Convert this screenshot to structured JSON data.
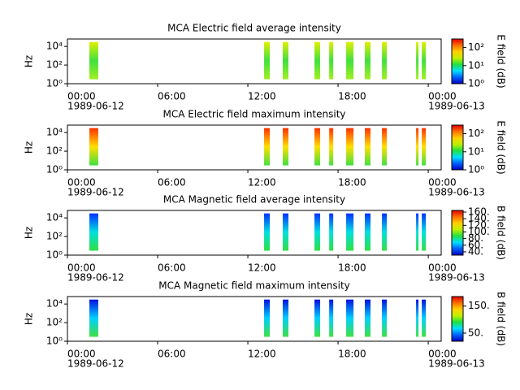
{
  "chart_data": [
    {
      "type": "spectrogram",
      "title": "MCA  Electric field average intensity",
      "ylabel": "Hz",
      "log_y": true,
      "ylim": [
        1,
        63000
      ],
      "yticks": [
        {
          "value": 1,
          "label": "10⁰"
        },
        {
          "value": 100,
          "label": "10²"
        },
        {
          "value": 10000,
          "label": "10⁴"
        }
      ],
      "xlim": [
        0,
        24.86
      ],
      "xticks": [
        {
          "value": 0,
          "label": "00:00",
          "date": "1989-06-12"
        },
        {
          "value": 6,
          "label": "06:00"
        },
        {
          "value": 12,
          "label": "12:00"
        },
        {
          "value": 18,
          "label": "18:00"
        },
        {
          "value": 24,
          "label": "00:00",
          "date": "1989-06-13"
        }
      ],
      "colorbar_label": "E field (dB)",
      "colorbar_log": true,
      "clim": [
        1,
        300
      ],
      "cticks": [
        {
          "value": 1,
          "label": "10⁰"
        },
        {
          "value": 10,
          "label": "10¹"
        },
        {
          "value": 100,
          "label": "10²"
        }
      ],
      "colormap": [
        "#0000c0",
        "#0060ff",
        "#00e0ff",
        "#20e040",
        "#c0f000",
        "#ffd000",
        "#ff7000",
        "#e00000"
      ],
      "segment_colors": [
        "#e0f000",
        "#40e040",
        "#a0f020"
      ],
      "segments": [
        {
          "start": 1.46,
          "end": 2.05,
          "fmin": 3,
          "fmax": 30000
        },
        {
          "start": 13.08,
          "end": 13.46,
          "fmin": 3,
          "fmax": 30000
        },
        {
          "start": 14.32,
          "end": 14.7,
          "fmin": 3,
          "fmax": 30000
        },
        {
          "start": 16.43,
          "end": 16.81,
          "fmin": 3,
          "fmax": 30000
        },
        {
          "start": 17.41,
          "end": 17.68,
          "fmin": 3,
          "fmax": 30000
        },
        {
          "start": 18.54,
          "end": 19.03,
          "fmin": 3,
          "fmax": 30000
        },
        {
          "start": 19.78,
          "end": 20.16,
          "fmin": 3,
          "fmax": 30000
        },
        {
          "start": 20.92,
          "end": 21.24,
          "fmin": 3,
          "fmax": 30000
        },
        {
          "start": 23.19,
          "end": 23.35,
          "fmin": 3,
          "fmax": 30000
        },
        {
          "start": 23.57,
          "end": 23.84,
          "fmin": 3,
          "fmax": 30000
        }
      ]
    },
    {
      "type": "spectrogram",
      "title": "MCA  Electric field maximum intensity",
      "ylabel": "Hz",
      "log_y": true,
      "ylim": [
        1,
        63000
      ],
      "yticks": [
        {
          "value": 1,
          "label": "10⁰"
        },
        {
          "value": 100,
          "label": "10²"
        },
        {
          "value": 10000,
          "label": "10⁴"
        }
      ],
      "xlim": [
        0,
        24.86
      ],
      "xticks": [
        {
          "value": 0,
          "label": "00:00",
          "date": "1989-06-12"
        },
        {
          "value": 6,
          "label": "06:00"
        },
        {
          "value": 12,
          "label": "12:00"
        },
        {
          "value": 18,
          "label": "18:00"
        },
        {
          "value": 24,
          "label": "00:00",
          "date": "1989-06-13"
        }
      ],
      "colorbar_label": "E field (dB)",
      "colorbar_log": true,
      "clim": [
        1,
        300
      ],
      "cticks": [
        {
          "value": 1,
          "label": "10⁰"
        },
        {
          "value": 10,
          "label": "10¹"
        },
        {
          "value": 100,
          "label": "10²"
        }
      ],
      "colormap": [
        "#0000c0",
        "#0060ff",
        "#00e0ff",
        "#20e040",
        "#c0f000",
        "#ffd000",
        "#ff7000",
        "#e00000"
      ],
      "segment_colors": [
        "#ff3000",
        "#ffe000",
        "#40e040"
      ],
      "segments": [
        {
          "start": 1.46,
          "end": 2.05,
          "fmin": 3,
          "fmax": 30000
        },
        {
          "start": 13.08,
          "end": 13.46,
          "fmin": 3,
          "fmax": 30000
        },
        {
          "start": 14.32,
          "end": 14.7,
          "fmin": 3,
          "fmax": 30000
        },
        {
          "start": 16.43,
          "end": 16.81,
          "fmin": 3,
          "fmax": 30000
        },
        {
          "start": 17.41,
          "end": 17.68,
          "fmin": 3,
          "fmax": 30000
        },
        {
          "start": 18.54,
          "end": 19.03,
          "fmin": 3,
          "fmax": 30000
        },
        {
          "start": 19.78,
          "end": 20.16,
          "fmin": 3,
          "fmax": 30000
        },
        {
          "start": 20.92,
          "end": 21.24,
          "fmin": 3,
          "fmax": 30000
        },
        {
          "start": 23.19,
          "end": 23.35,
          "fmin": 3,
          "fmax": 30000
        },
        {
          "start": 23.57,
          "end": 23.84,
          "fmin": 3,
          "fmax": 30000
        }
      ]
    },
    {
      "type": "spectrogram",
      "title": "MCA  Magnetic field average intensity",
      "ylabel": "Hz",
      "log_y": true,
      "ylim": [
        1,
        63000
      ],
      "yticks": [
        {
          "value": 1,
          "label": "10⁰"
        },
        {
          "value": 100,
          "label": "10²"
        },
        {
          "value": 10000,
          "label": "10⁴"
        }
      ],
      "xlim": [
        0,
        24.86
      ],
      "xticks": [
        {
          "value": 0,
          "label": "00:00",
          "date": "1989-06-12"
        },
        {
          "value": 6,
          "label": "06:00"
        },
        {
          "value": 12,
          "label": "12:00"
        },
        {
          "value": 18,
          "label": "18:00"
        },
        {
          "value": 24,
          "label": "00:00",
          "date": "1989-06-13"
        }
      ],
      "colorbar_label": "B field (dB)",
      "colorbar_log": false,
      "clim": [
        30,
        165
      ],
      "cticks": [
        {
          "value": 40,
          "label": "40."
        },
        {
          "value": 60,
          "label": "60."
        },
        {
          "value": 80,
          "label": "80."
        },
        {
          "value": 100,
          "label": "100."
        },
        {
          "value": 120,
          "label": "120."
        },
        {
          "value": 140,
          "label": "140."
        },
        {
          "value": 160,
          "label": "160."
        }
      ],
      "colormap": [
        "#0000c0",
        "#0060ff",
        "#00e0ff",
        "#20e040",
        "#c0f000",
        "#ffd000",
        "#ff7000",
        "#e00000"
      ],
      "segment_colors": [
        "#0030ff",
        "#00e0e0",
        "#30e040"
      ],
      "segments": [
        {
          "start": 1.46,
          "end": 2.05,
          "fmin": 3,
          "fmax": 30000
        },
        {
          "start": 13.08,
          "end": 13.46,
          "fmin": 3,
          "fmax": 30000
        },
        {
          "start": 14.32,
          "end": 14.7,
          "fmin": 3,
          "fmax": 30000
        },
        {
          "start": 16.43,
          "end": 16.81,
          "fmin": 3,
          "fmax": 30000
        },
        {
          "start": 17.41,
          "end": 17.68,
          "fmin": 3,
          "fmax": 30000
        },
        {
          "start": 18.54,
          "end": 19.03,
          "fmin": 3,
          "fmax": 30000
        },
        {
          "start": 19.78,
          "end": 20.16,
          "fmin": 3,
          "fmax": 30000
        },
        {
          "start": 20.92,
          "end": 21.24,
          "fmin": 3,
          "fmax": 30000
        },
        {
          "start": 23.19,
          "end": 23.35,
          "fmin": 3,
          "fmax": 30000
        },
        {
          "start": 23.57,
          "end": 23.84,
          "fmin": 3,
          "fmax": 30000
        }
      ]
    },
    {
      "type": "spectrogram",
      "title": "MCA  Magnetic field maximum intensity",
      "ylabel": "Hz",
      "log_y": true,
      "ylim": [
        1,
        63000
      ],
      "yticks": [
        {
          "value": 1,
          "label": "10⁰"
        },
        {
          "value": 100,
          "label": "10²"
        },
        {
          "value": 10000,
          "label": "10⁴"
        }
      ],
      "xlim": [
        0,
        24.86
      ],
      "xticks": [
        {
          "value": 0,
          "label": "00:00",
          "date": "1989-06-12"
        },
        {
          "value": 6,
          "label": "06:00"
        },
        {
          "value": 12,
          "label": "12:00"
        },
        {
          "value": 18,
          "label": "18:00"
        },
        {
          "value": 24,
          "label": "00:00",
          "date": "1989-06-13"
        }
      ],
      "colorbar_label": "B field (dB)",
      "colorbar_log": false,
      "clim": [
        20,
        185
      ],
      "cticks": [
        {
          "value": 50,
          "label": "50."
        },
        {
          "value": 150,
          "label": "150."
        }
      ],
      "colormap": [
        "#0000c0",
        "#0060ff",
        "#00e0ff",
        "#20e040",
        "#c0f000",
        "#ffd000",
        "#ff7000",
        "#e00000"
      ],
      "segment_colors": [
        "#0010e0",
        "#00d0ff",
        "#40e040"
      ],
      "segments": [
        {
          "start": 1.46,
          "end": 2.05,
          "fmin": 3,
          "fmax": 30000
        },
        {
          "start": 13.08,
          "end": 13.46,
          "fmin": 3,
          "fmax": 30000
        },
        {
          "start": 14.32,
          "end": 14.7,
          "fmin": 3,
          "fmax": 30000
        },
        {
          "start": 16.43,
          "end": 16.81,
          "fmin": 3,
          "fmax": 30000
        },
        {
          "start": 17.41,
          "end": 17.68,
          "fmin": 3,
          "fmax": 30000
        },
        {
          "start": 18.54,
          "end": 19.03,
          "fmin": 3,
          "fmax": 30000
        },
        {
          "start": 19.78,
          "end": 20.16,
          "fmin": 3,
          "fmax": 30000
        },
        {
          "start": 20.92,
          "end": 21.24,
          "fmin": 3,
          "fmax": 30000
        },
        {
          "start": 23.19,
          "end": 23.35,
          "fmin": 3,
          "fmax": 30000
        },
        {
          "start": 23.57,
          "end": 23.84,
          "fmin": 3,
          "fmax": 30000
        }
      ]
    }
  ]
}
